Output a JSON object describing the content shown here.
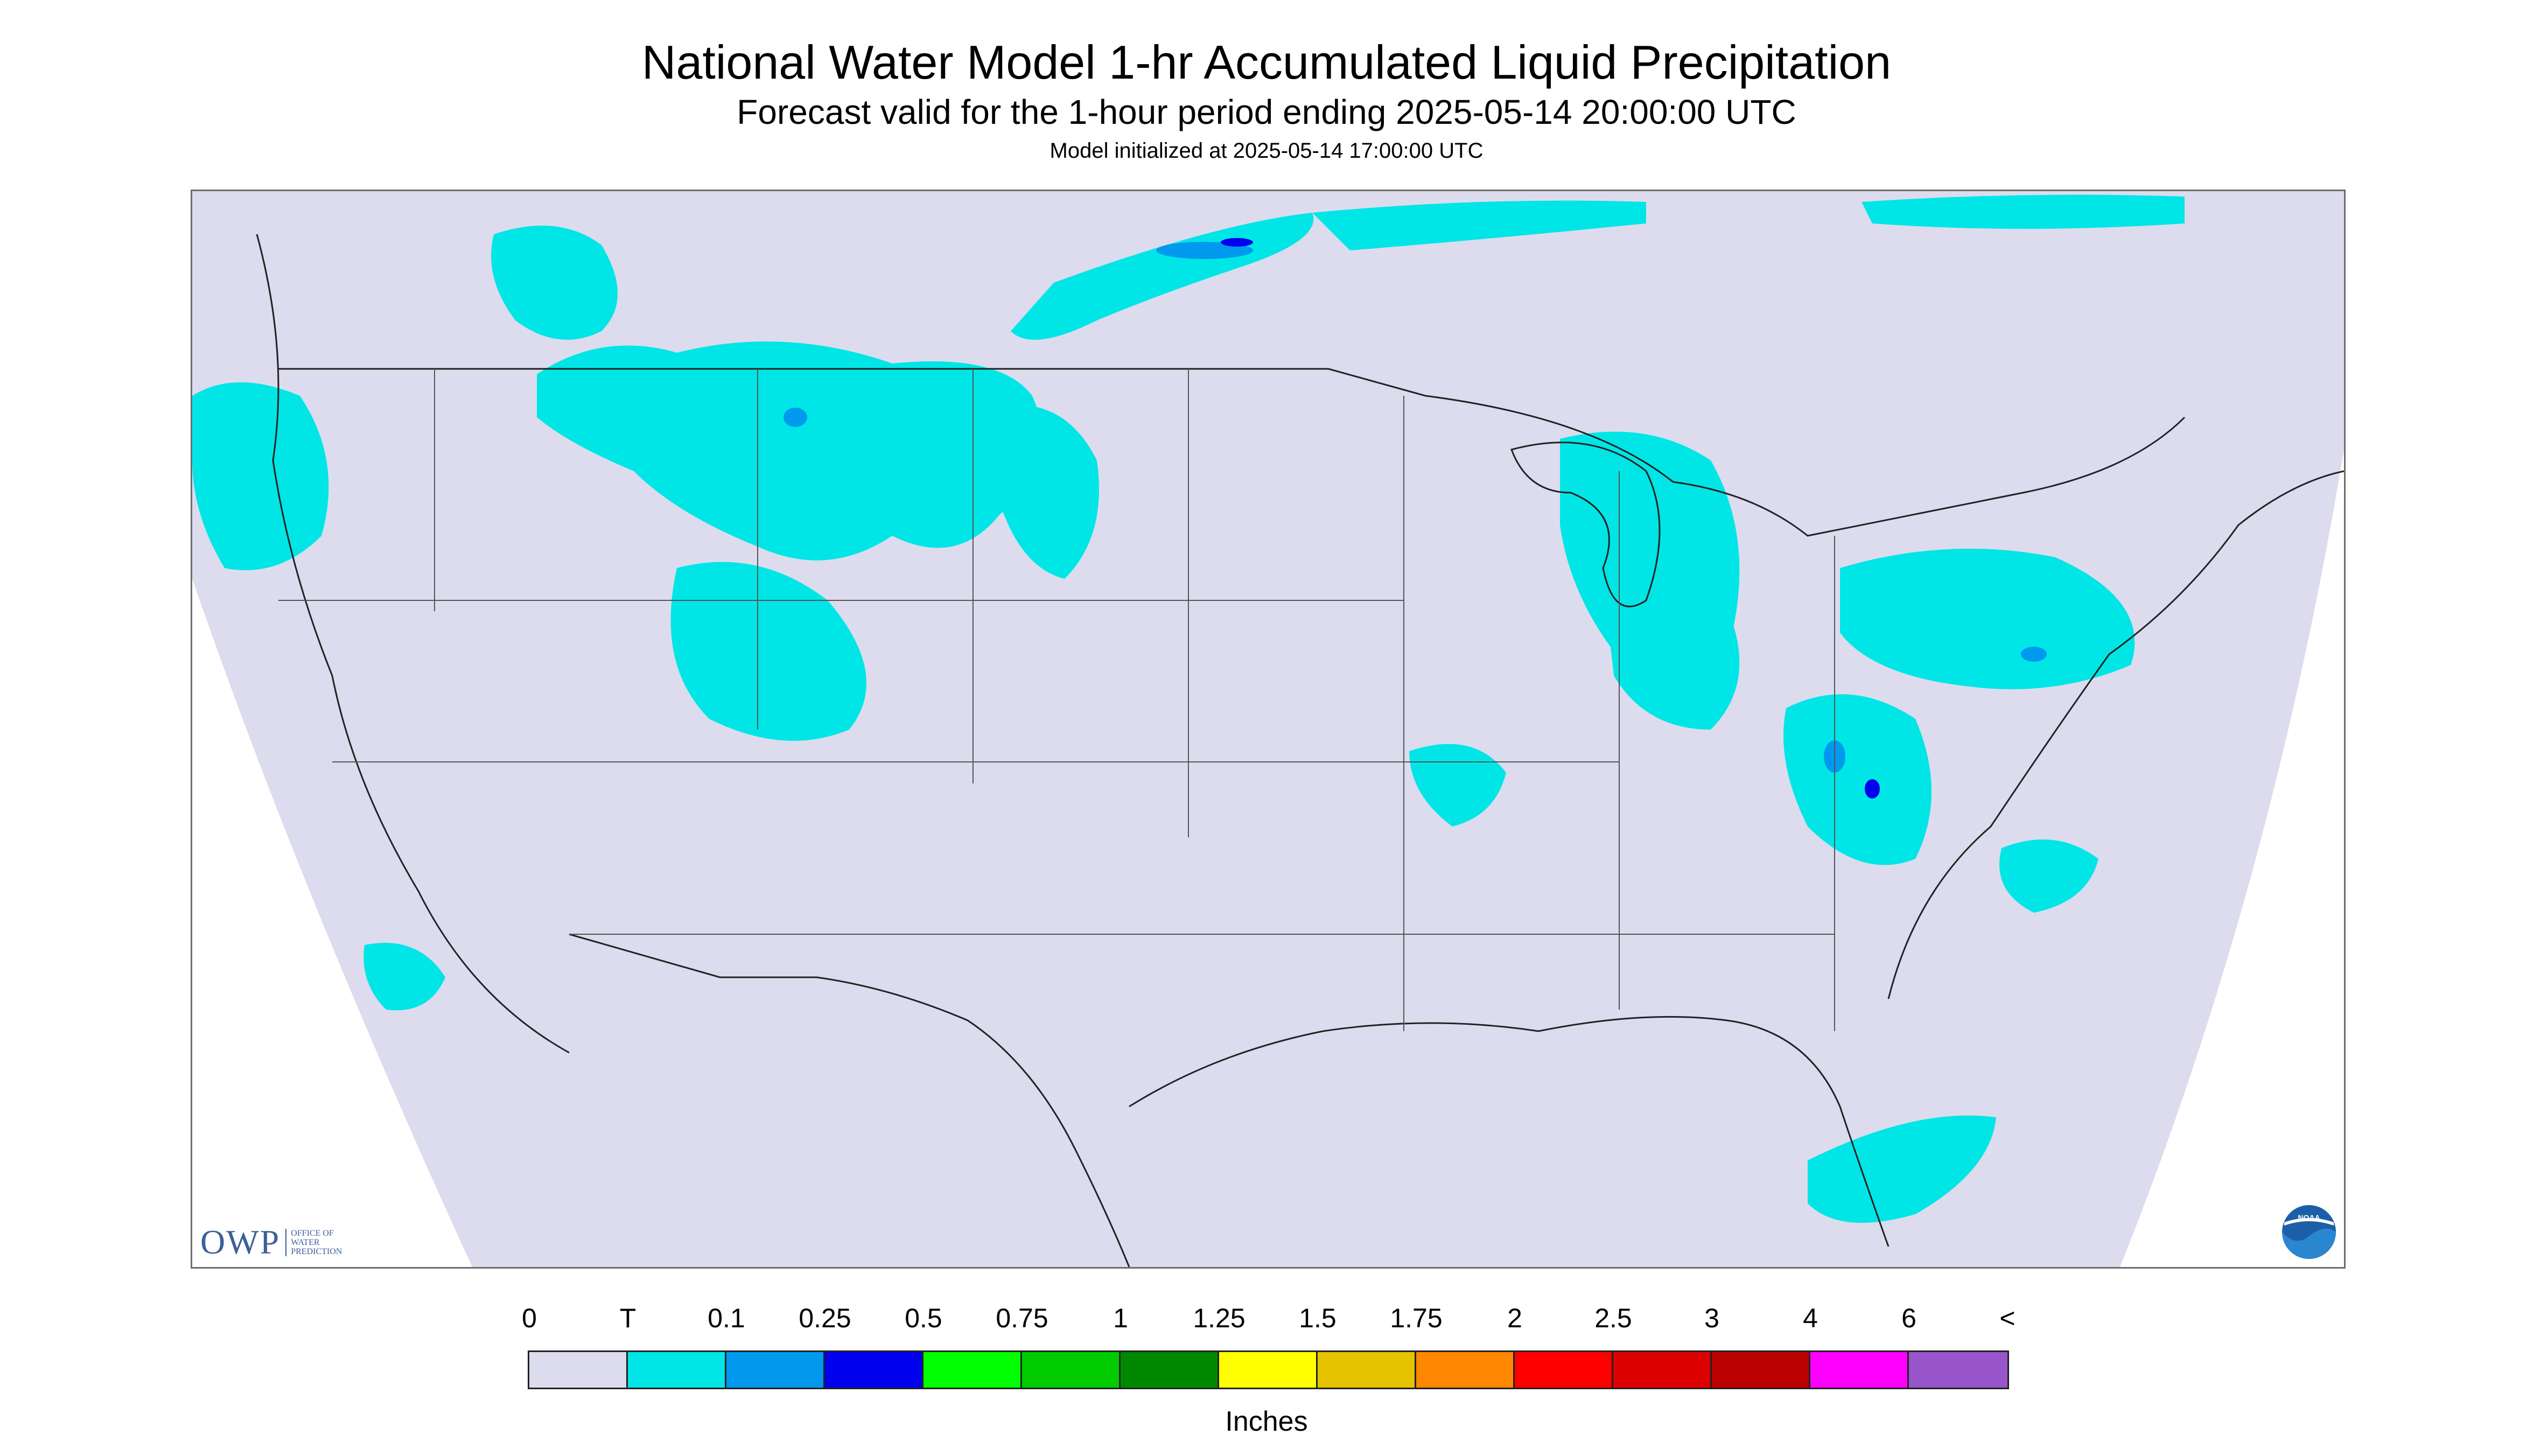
{
  "header": {
    "title": "National Water Model 1-hr Accumulated Liquid Precipitation",
    "subtitle": "Forecast valid for the 1-hour period ending 2025-05-14 20:00:00 UTC",
    "init": "Model initialized at 2025-05-14 17:00:00 UTC"
  },
  "map": {
    "background_color": "#dcdcee",
    "outside_color": "#ffffff",
    "boundary_color": "#222222",
    "rain_colors": {
      "trace": "#00e6e6",
      "light": "#0099ee",
      "moderate": "#0000ee"
    }
  },
  "logos": {
    "owp_text": "OWP",
    "owp_sub": [
      "OFFICE OF",
      "WATER",
      "PREDICTION"
    ],
    "noaa_text": "NOAA"
  },
  "legend": {
    "labels": [
      "0",
      "T",
      "0.1",
      "0.25",
      "0.5",
      "0.75",
      "1",
      "1.25",
      "1.5",
      "1.75",
      "2",
      "2.5",
      "3",
      "4",
      "6",
      "<"
    ],
    "colors": [
      "#dcdcee",
      "#00e6e6",
      "#0099ee",
      "#0000ee",
      "#00ff00",
      "#00cc00",
      "#008800",
      "#ffff00",
      "#e6c300",
      "#ff8800",
      "#ff0000",
      "#dd0000",
      "#bb0000",
      "#ff00ff",
      "#9955cc"
    ],
    "units": "Inches"
  }
}
